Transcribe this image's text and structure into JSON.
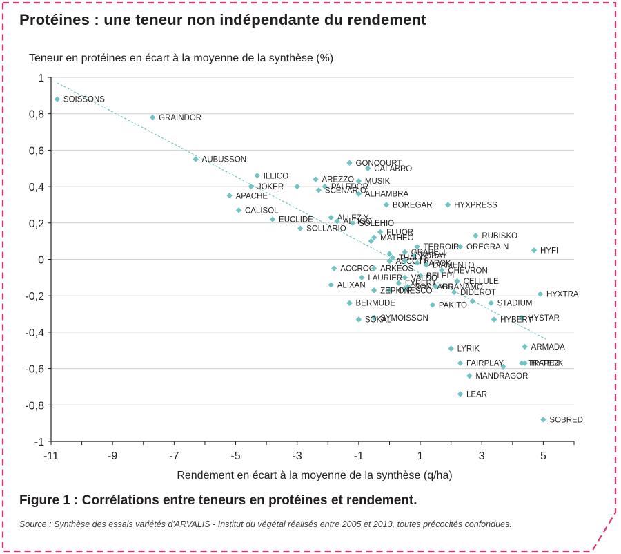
{
  "title": "Protéines : une teneur non indépendante du rendement",
  "figure_caption": "Figure 1 : Corrélations entre teneurs en protéines et rendement.",
  "source": "Source : Synthèse des essais variétés d'ARVALIS - Institut du végétal réalisés entre 2005 et 2013, toutes précocités confondues.",
  "colors": {
    "frame": "#e2336f",
    "marker": "#6fc4c3",
    "trend": "#6fc4c3",
    "grid": "#cfcfcf",
    "axis": "#231f20"
  },
  "chart_data": {
    "type": "scatter",
    "title": "",
    "xlabel": "Rendement en écart à la moyenne de la synthèse (q/ha)",
    "ylabel": "Teneur en protéines en écart à la moyenne de la synthèse (%)",
    "xlim": [
      -11,
      6
    ],
    "ylim": [
      -1,
      1
    ],
    "x_ticks": [
      -11,
      -9,
      -7,
      -5,
      -3,
      -1,
      1,
      3,
      5
    ],
    "x_tick_labels": [
      "-11",
      "-9",
      "-7",
      "-5",
      "-3",
      "-1",
      "1",
      "3",
      "5"
    ],
    "y_ticks": [
      1,
      0.8,
      0.6,
      0.4,
      0.2,
      0,
      -0.2,
      -0.4,
      -0.6,
      -0.8,
      -1
    ],
    "y_tick_labels": [
      "1",
      "0,8",
      "0,6",
      "0,4",
      "0,2",
      "0",
      "-0,2",
      "-0,4",
      "-0,6",
      "-0,8",
      "-1"
    ],
    "grid": "horizontal",
    "trendline": {
      "x": [
        -10.8,
        5.1
      ],
      "y": [
        0.97,
        -0.44
      ]
    },
    "points": [
      {
        "label": "SOISSONS",
        "x": -10.8,
        "y": 0.88
      },
      {
        "label": "GRAINDOR",
        "x": -7.7,
        "y": 0.78
      },
      {
        "label": "AUBUSSON",
        "x": -6.3,
        "y": 0.55
      },
      {
        "label": "GONCOURT",
        "x": -1.3,
        "y": 0.53
      },
      {
        "label": "CALABRO",
        "x": -0.7,
        "y": 0.5
      },
      {
        "label": "ILLICO",
        "x": -4.3,
        "y": 0.46
      },
      {
        "label": "AREZZO",
        "x": -2.4,
        "y": 0.44
      },
      {
        "label": "MUSIK",
        "x": -1.0,
        "y": 0.43
      },
      {
        "label": "JOKER",
        "x": -4.5,
        "y": 0.4
      },
      {
        "label": "",
        "x": -3.0,
        "y": 0.4
      },
      {
        "label": "PALEDOR",
        "x": -2.1,
        "y": 0.4
      },
      {
        "label": "SCENARIO",
        "x": -2.3,
        "y": 0.38
      },
      {
        "label": "ALHAMBRA",
        "x": -1.0,
        "y": 0.36
      },
      {
        "label": "APACHE",
        "x": -5.2,
        "y": 0.35
      },
      {
        "label": "BOREGAR",
        "x": -0.1,
        "y": 0.3
      },
      {
        "label": "HYXPRESS",
        "x": 1.9,
        "y": 0.3
      },
      {
        "label": "CALISOL",
        "x": -4.9,
        "y": 0.27
      },
      {
        "label": "ALLEZ Y",
        "x": -1.9,
        "y": 0.23
      },
      {
        "label": "EUCLIDE",
        "x": -3.8,
        "y": 0.22
      },
      {
        "label": "ALTIGO",
        "x": -1.7,
        "y": 0.21
      },
      {
        "label": "SOLEHIO",
        "x": -1.2,
        "y": 0.2
      },
      {
        "label": "SOLLARIO",
        "x": -2.9,
        "y": 0.17
      },
      {
        "label": "FLUOR",
        "x": -0.3,
        "y": 0.15
      },
      {
        "label": "RUBISKO",
        "x": 2.8,
        "y": 0.13
      },
      {
        "label": "MATHEO",
        "x": -0.5,
        "y": 0.12
      },
      {
        "label": "",
        "x": -0.6,
        "y": 0.1
      },
      {
        "label": "TERROIR",
        "x": 0.9,
        "y": 0.07
      },
      {
        "label": "OREGRAIN",
        "x": 2.3,
        "y": 0.07
      },
      {
        "label": "HYFI",
        "x": 4.7,
        "y": 0.05
      },
      {
        "label": "GRAPELI",
        "x": 0.5,
        "y": 0.04
      },
      {
        "label": "FORAY",
        "x": 0.8,
        "y": 0.02
      },
      {
        "label": "THALYS",
        "x": 0.1,
        "y": 0.01
      },
      {
        "label": "",
        "x": 0.0,
        "y": 0.03
      },
      {
        "label": "ASCOTT",
        "x": 0.0,
        "y": -0.01
      },
      {
        "label": "BAROK",
        "x": 0.9,
        "y": -0.02
      },
      {
        "label": "",
        "x": 0.5,
        "y": -0.01
      },
      {
        "label": "DIAMENTO",
        "x": 1.2,
        "y": -0.03
      },
      {
        "label": "ACCROC",
        "x": -1.8,
        "y": -0.05
      },
      {
        "label": "ARKEOS",
        "x": -0.5,
        "y": -0.05
      },
      {
        "label": "CHEVRON",
        "x": 1.7,
        "y": -0.06
      },
      {
        "label": "BELEPI",
        "x": 1.0,
        "y": -0.09
      },
      {
        "label": "VALDO",
        "x": 0.5,
        "y": -0.1
      },
      {
        "label": "LAURIER",
        "x": -0.9,
        "y": -0.1
      },
      {
        "label": "CELLULE",
        "x": 2.2,
        "y": -0.12
      },
      {
        "label": "EXPERT",
        "x": 0.3,
        "y": -0.13
      },
      {
        "label": "ALIXAN",
        "x": -1.9,
        "y": -0.14
      },
      {
        "label": "RONSARD",
        "x": 0.6,
        "y": -0.15
      },
      {
        "label": "GRANAMO",
        "x": 1.5,
        "y": -0.15
      },
      {
        "label": "IONESCO",
        "x": 0.0,
        "y": -0.17
      },
      {
        "label": "",
        "x": 0.5,
        "y": -0.16
      },
      {
        "label": "DIDEROT",
        "x": 2.1,
        "y": -0.18
      },
      {
        "label": "HYXTRA",
        "x": 4.9,
        "y": -0.19
      },
      {
        "label": "ZEPHYR",
        "x": -0.5,
        "y": -0.17
      },
      {
        "label": "STADIUM",
        "x": 3.3,
        "y": -0.24
      },
      {
        "label": "BERMUDE",
        "x": -1.3,
        "y": -0.24
      },
      {
        "label": "PAKITO",
        "x": 1.4,
        "y": -0.25
      },
      {
        "label": "",
        "x": 2.7,
        "y": -0.23
      },
      {
        "label": "HYSTAR",
        "x": 4.3,
        "y": -0.32
      },
      {
        "label": "SYMOISSON",
        "x": -0.5,
        "y": -0.32
      },
      {
        "label": "HYBERY",
        "x": 3.4,
        "y": -0.33
      },
      {
        "label": "SOKAL",
        "x": -1.0,
        "y": -0.33
      },
      {
        "label": "LYRIK",
        "x": 2.0,
        "y": -0.49
      },
      {
        "label": "ARMADA",
        "x": 4.4,
        "y": -0.48
      },
      {
        "label": "TRAPEZ",
        "x": 4.3,
        "y": -0.57
      },
      {
        "label": "FAIRPLAY",
        "x": 2.3,
        "y": -0.57
      },
      {
        "label": "HYTECK",
        "x": 4.4,
        "y": -0.57
      },
      {
        "label": "",
        "x": 3.7,
        "y": -0.59
      },
      {
        "label": "MANDRAGOR",
        "x": 2.6,
        "y": -0.64
      },
      {
        "label": "LEAR",
        "x": 2.3,
        "y": -0.74
      },
      {
        "label": "SOBRED",
        "x": 5.0,
        "y": -0.88
      }
    ]
  }
}
